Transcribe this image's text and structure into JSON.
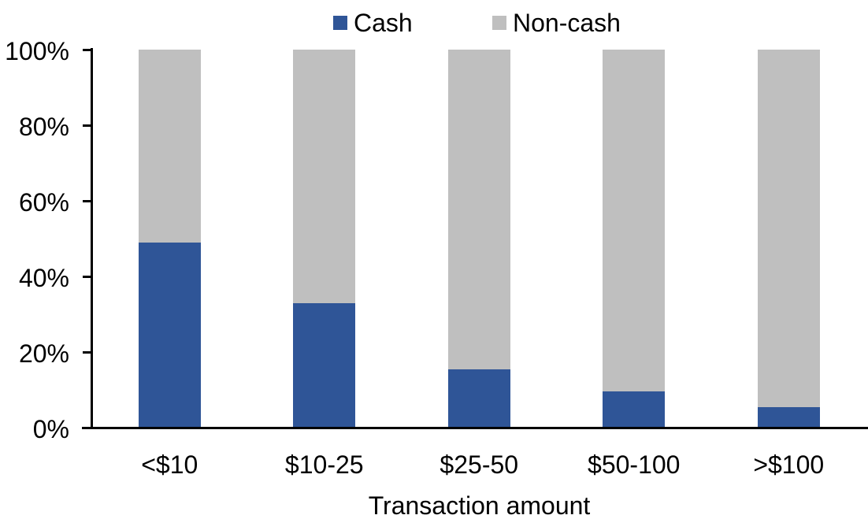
{
  "chart_data": {
    "type": "bar",
    "stacked": true,
    "percent_stacked": true,
    "title": "",
    "xlabel": "Transaction amount",
    "ylabel": "",
    "categories": [
      "<$10",
      "$10-25",
      "$25-50",
      "$50-100",
      ">$100"
    ],
    "series": [
      {
        "name": "Cash",
        "color": "#2F5597",
        "values": [
          49,
          33,
          15.5,
          9.5,
          5.5
        ]
      },
      {
        "name": "Non-cash",
        "color": "#BFBFBF",
        "values": [
          51,
          67,
          84.5,
          90.5,
          94.5
        ]
      }
    ],
    "ylim": [
      0,
      100
    ],
    "yticks": [
      0,
      20,
      40,
      60,
      80,
      100
    ],
    "ytick_labels": [
      "0%",
      "20%",
      "40%",
      "60%",
      "80%",
      "100%"
    ],
    "grid": false,
    "legend_position": "top-center",
    "axis_color": "#000000",
    "background_color": "#FFFFFF"
  }
}
